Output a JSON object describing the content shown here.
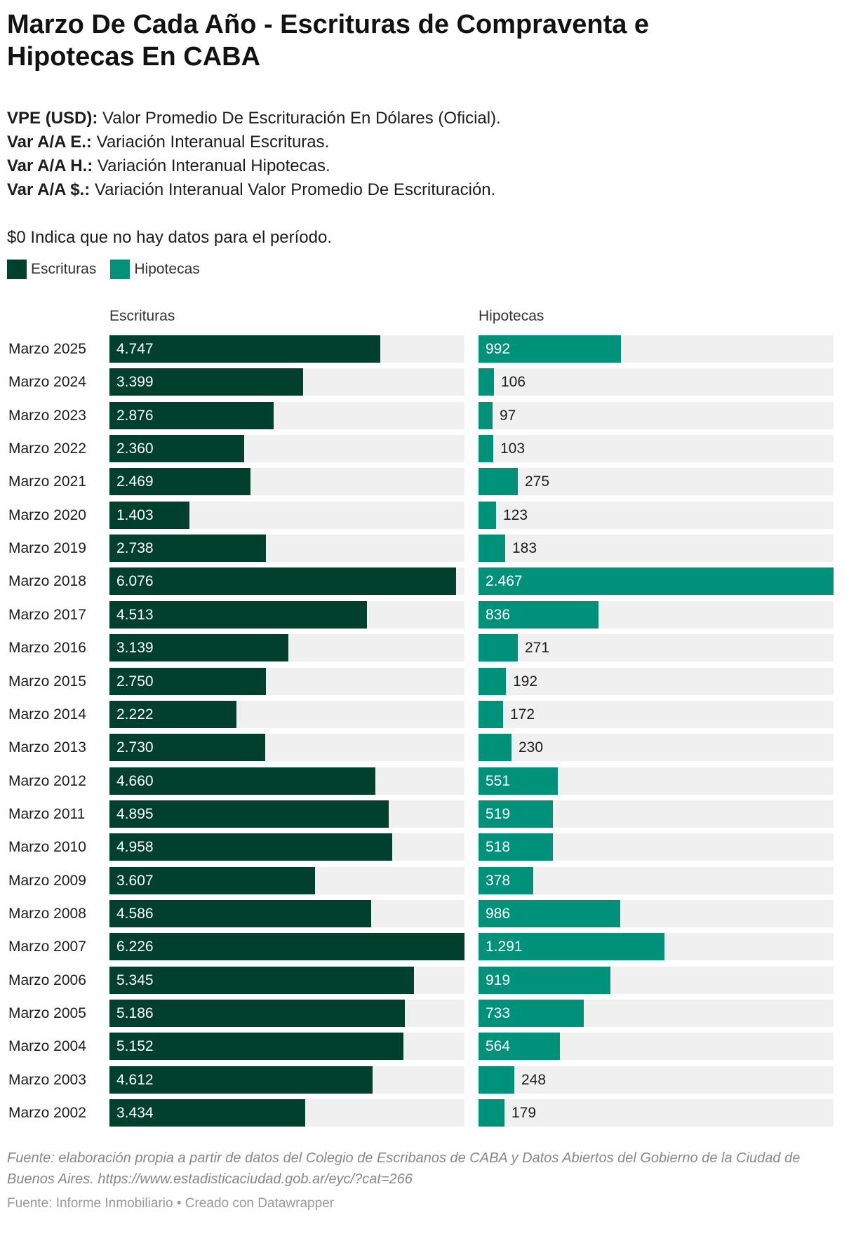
{
  "title": "Marzo De Cada Año - Escrituras de Compraventa e Hipotecas En CABA",
  "definitions": [
    {
      "term": "VPE (USD):",
      "text": " Valor Promedio De Escrituración En Dólares (Oficial)."
    },
    {
      "term": "Var A/A E.:",
      "text": " Variación Interanual Escrituras."
    },
    {
      "term": "Var A/A H.:",
      "text": " Variación Interanual Hipotecas."
    },
    {
      "term": "Var A/A $.:",
      "text": " Variación Interanual Valor Promedio De Escrituración."
    }
  ],
  "note": "$0 Indica que no hay datos para el período.",
  "legend": [
    {
      "label": "Escrituras",
      "color": "#00402c"
    },
    {
      "label": "Hipotecas",
      "color": "#00917a"
    }
  ],
  "source": "Fuente: elaboración propia a partir de datos del Colegio de Escribanos de CABA y Datos Abiertos del Gobierno de la Ciudad de Buenos Aires. https://www.estadisticaciudad.gob.ar/eyc/?cat=266",
  "credit": "Fuente: Informe Inmobiliario • Creado con Datawrapper",
  "chart_data": {
    "type": "bar",
    "orientation": "horizontal",
    "categories": [
      "Marzo 2025",
      "Marzo 2024",
      "Marzo 2023",
      "Marzo 2022",
      "Marzo 2021",
      "Marzo 2020",
      "Marzo 2019",
      "Marzo 2018",
      "Marzo 2017",
      "Marzo 2016",
      "Marzo 2015",
      "Marzo 2014",
      "Marzo 2013",
      "Marzo 2012",
      "Marzo 2011",
      "Marzo 2010",
      "Marzo 2009",
      "Marzo 2008",
      "Marzo 2007",
      "Marzo 2006",
      "Marzo 2005",
      "Marzo 2004",
      "Marzo 2003",
      "Marzo 2002"
    ],
    "series": [
      {
        "name": "Escrituras",
        "color": "#00402c",
        "values": [
          4747,
          3399,
          2876,
          2360,
          2469,
          1403,
          2738,
          6076,
          4513,
          3139,
          2750,
          2222,
          2730,
          4660,
          4895,
          4958,
          3607,
          4586,
          6226,
          5345,
          5186,
          5152,
          4612,
          3434
        ],
        "labels": [
          "4.747",
          "3.399",
          "2.876",
          "2.360",
          "2.469",
          "1.403",
          "2.738",
          "6.076",
          "4.513",
          "3.139",
          "2.750",
          "2.222",
          "2.730",
          "4.660",
          "4.895",
          "4.958",
          "3.607",
          "4.586",
          "6.226",
          "5.345",
          "5.186",
          "5.152",
          "4.612",
          "3.434"
        ]
      },
      {
        "name": "Hipotecas",
        "color": "#00917a",
        "values": [
          992,
          106,
          97,
          103,
          275,
          123,
          183,
          2467,
          836,
          271,
          192,
          172,
          230,
          551,
          519,
          518,
          378,
          986,
          1291,
          919,
          733,
          564,
          248,
          179
        ],
        "labels": [
          "992",
          "106",
          "97",
          "103",
          "275",
          "123",
          "183",
          "2.467",
          "836",
          "271",
          "192",
          "172",
          "230",
          "551",
          "519",
          "518",
          "378",
          "986",
          "1.291",
          "919",
          "733",
          "564",
          "248",
          "179"
        ]
      }
    ]
  }
}
